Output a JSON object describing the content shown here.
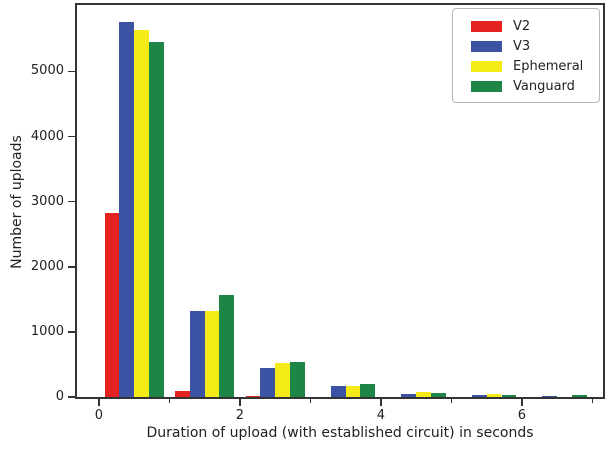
{
  "chart_data": {
    "type": "bar",
    "title": "",
    "xlabel": "Duration of upload (with established circuit) in seconds",
    "ylabel": "Number of uploads",
    "bins": [
      "0-1",
      "1-2",
      "2-3",
      "3-4",
      "4-5",
      "5-6",
      "6-7"
    ],
    "bin_starts": [
      0,
      1,
      2,
      3,
      4,
      5,
      6
    ],
    "series": [
      {
        "name": "V2",
        "color": "#e42320",
        "values": [
          2830,
          90,
          20,
          0,
          0,
          0,
          0
        ]
      },
      {
        "name": "V3",
        "color": "#3c53a4",
        "values": [
          5760,
          1320,
          440,
          175,
          50,
          30,
          22
        ]
      },
      {
        "name": "Ephemeral",
        "color": "#f5eb16",
        "values": [
          5640,
          1320,
          530,
          165,
          75,
          48,
          8
        ]
      },
      {
        "name": "Vanguard",
        "color": "#1d8545",
        "values": [
          5460,
          1560,
          545,
          205,
          62,
          27,
          28
        ]
      }
    ],
    "y_tick_labels": [
      "0",
      "1000",
      "2000",
      "3000",
      "4000",
      "5000"
    ],
    "y_tick_values": [
      0,
      1000,
      2000,
      3000,
      4000,
      5000
    ],
    "x_major_tick_labels": [
      "0",
      "2",
      "4",
      "6"
    ],
    "x_major_tick_values": [
      0,
      2,
      4,
      6
    ],
    "x_minor_tick_values": [
      1,
      3,
      5,
      7
    ],
    "xlim": [
      -0.31,
      7.15
    ],
    "ylim": [
      0,
      6020
    ],
    "grid": false,
    "legend_position": "upper-right",
    "legend_entries": [
      "V2",
      "V3",
      "Ephemeral",
      "Vanguard"
    ]
  },
  "colors": {
    "spine": "#333333",
    "text": "#222222",
    "legend_border": "#b7b7b7",
    "background": "#ffffff"
  }
}
